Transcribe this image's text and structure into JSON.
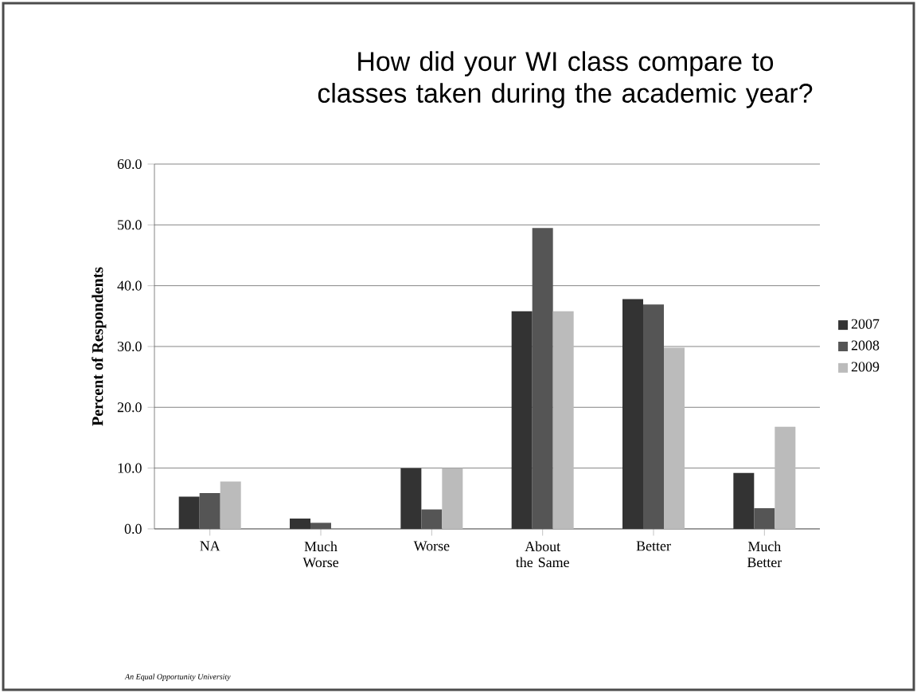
{
  "chart_data": {
    "type": "bar",
    "title": "How did your WI class compare to classes taken during the academic year?",
    "ylabel": "Percent of Respondents",
    "categories": [
      "NA",
      "Much Worse",
      "Worse",
      "About the Same",
      "Better",
      "Much Better"
    ],
    "series": [
      {
        "name": "2007",
        "color": "#333333",
        "values": [
          5.3,
          1.7,
          10.0,
          35.8,
          37.8,
          9.2
        ]
      },
      {
        "name": "2008",
        "color": "#555555",
        "values": [
          5.9,
          1.0,
          3.2,
          49.5,
          36.9,
          3.4
        ]
      },
      {
        "name": "2009",
        "color": "#bbbbbb",
        "values": [
          7.8,
          0,
          10.0,
          35.8,
          29.8,
          16.8
        ]
      }
    ],
    "ylim": [
      0,
      60
    ],
    "yticks": [
      {
        "value": 0,
        "label": "0.0"
      },
      {
        "value": 10,
        "label": "10.0"
      },
      {
        "value": 20,
        "label": "20.0"
      },
      {
        "value": 30,
        "label": "30.0"
      },
      {
        "value": 40,
        "label": "40.0"
      },
      {
        "value": 50,
        "label": "50.0"
      },
      {
        "value": 60,
        "label": "60.0"
      }
    ],
    "grid": "y",
    "legend": "right",
    "annotations": [
      "An Equal Opportunity University"
    ]
  }
}
